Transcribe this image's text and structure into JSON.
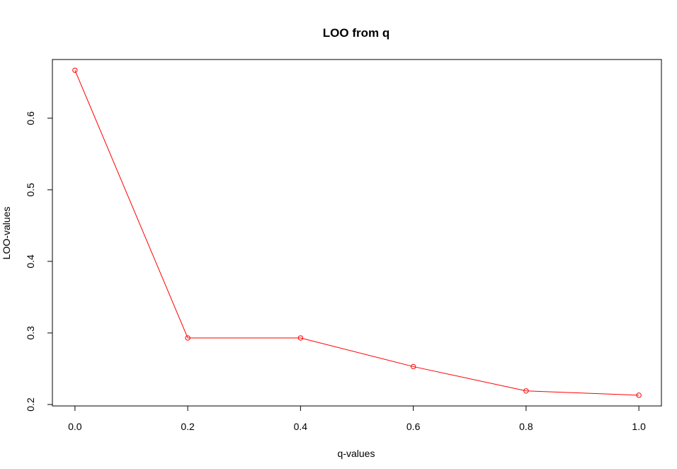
{
  "chart_data": {
    "type": "line",
    "title": "LOO from q",
    "xlabel": "q-values",
    "ylabel": "LOO-values",
    "x": [
      0.0,
      0.2,
      0.4,
      0.6,
      0.8,
      1.0
    ],
    "series": [
      {
        "values": [
          0.667,
          0.293,
          0.293,
          0.253,
          0.219,
          0.213
        ],
        "color": "#ff0000",
        "marker": "open-circle",
        "line": true
      }
    ],
    "xlim": [
      -0.04,
      1.04
    ],
    "ylim": [
      0.198,
      0.682
    ],
    "xticks": [
      0.0,
      0.2,
      0.4,
      0.6,
      0.8,
      1.0
    ],
    "xtick_labels": [
      "0.0",
      "0.2",
      "0.4",
      "0.6",
      "0.8",
      "1.0"
    ],
    "yticks": [
      0.2,
      0.3,
      0.4,
      0.5,
      0.6
    ],
    "ytick_labels": [
      "0.2",
      "0.3",
      "0.4",
      "0.5",
      "0.6"
    ],
    "grid": false,
    "legend": "none"
  }
}
